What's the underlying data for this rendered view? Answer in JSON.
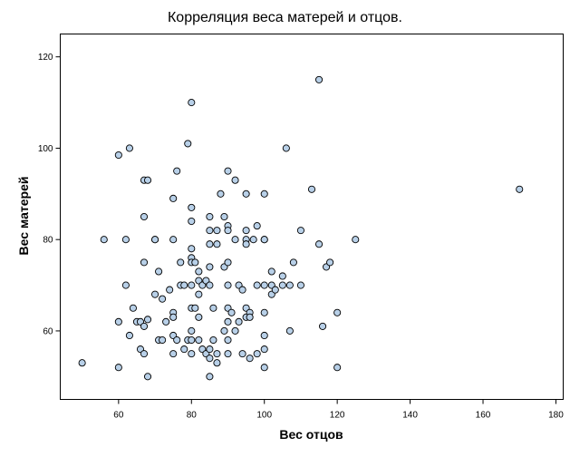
{
  "chart_data": {
    "type": "scatter",
    "title": "Корреляция веса матерей и отцов.",
    "xlabel": "Вес отцов",
    "ylabel": "Вес матерей",
    "xlim": [
      44,
      182
    ],
    "ylim": [
      45,
      125
    ],
    "xticks": [
      60,
      80,
      100,
      120,
      140,
      160,
      180
    ],
    "yticks": [
      60,
      80,
      100,
      120
    ],
    "grid": false,
    "colors": {
      "point_fill": "#b8d0e8",
      "point_stroke": "#000000",
      "axis": "#000000"
    },
    "points": [
      [
        50,
        53
      ],
      [
        56,
        80
      ],
      [
        60,
        98.5
      ],
      [
        60,
        62
      ],
      [
        60,
        52
      ],
      [
        62,
        80
      ],
      [
        62,
        70
      ],
      [
        63,
        100
      ],
      [
        63,
        59
      ],
      [
        64,
        65
      ],
      [
        65,
        62
      ],
      [
        66,
        56
      ],
      [
        66,
        62
      ],
      [
        67,
        93
      ],
      [
        67,
        85
      ],
      [
        67,
        75
      ],
      [
        67,
        61
      ],
      [
        67,
        55
      ],
      [
        68,
        93
      ],
      [
        68,
        62.5
      ],
      [
        68,
        50
      ],
      [
        70,
        80
      ],
      [
        70,
        68
      ],
      [
        70,
        80
      ],
      [
        71,
        73
      ],
      [
        71,
        58
      ],
      [
        72,
        58
      ],
      [
        72,
        67
      ],
      [
        73,
        62
      ],
      [
        74,
        69
      ],
      [
        75,
        89
      ],
      [
        75,
        80
      ],
      [
        75,
        64
      ],
      [
        75,
        63
      ],
      [
        75,
        59
      ],
      [
        75,
        55
      ],
      [
        76,
        95
      ],
      [
        76,
        58
      ],
      [
        77,
        75
      ],
      [
        77,
        70
      ],
      [
        78,
        56
      ],
      [
        78,
        70
      ],
      [
        79,
        58
      ],
      [
        79,
        101
      ],
      [
        80,
        110
      ],
      [
        80,
        87
      ],
      [
        80,
        84
      ],
      [
        80,
        78
      ],
      [
        80,
        76
      ],
      [
        80,
        75
      ],
      [
        80,
        70
      ],
      [
        80,
        65
      ],
      [
        80,
        60
      ],
      [
        80,
        58
      ],
      [
        80,
        55
      ],
      [
        81,
        75
      ],
      [
        81,
        65
      ],
      [
        82,
        71
      ],
      [
        82,
        73
      ],
      [
        82,
        68
      ],
      [
        82,
        63
      ],
      [
        82,
        58
      ],
      [
        83,
        56
      ],
      [
        83,
        70
      ],
      [
        84,
        55
      ],
      [
        84,
        71
      ],
      [
        85,
        85
      ],
      [
        85,
        82
      ],
      [
        85,
        79
      ],
      [
        85,
        74
      ],
      [
        85,
        70
      ],
      [
        85,
        56
      ],
      [
        85,
        54
      ],
      [
        85,
        50
      ],
      [
        86,
        58
      ],
      [
        86,
        65
      ],
      [
        87,
        82
      ],
      [
        87,
        79
      ],
      [
        87,
        55
      ],
      [
        87,
        53
      ],
      [
        88,
        90
      ],
      [
        89,
        85
      ],
      [
        89,
        74
      ],
      [
        89,
        60
      ],
      [
        90,
        95
      ],
      [
        90,
        83
      ],
      [
        90,
        82
      ],
      [
        90,
        75
      ],
      [
        90,
        70
      ],
      [
        90,
        65
      ],
      [
        90,
        62
      ],
      [
        90,
        58
      ],
      [
        90,
        55
      ],
      [
        91,
        64
      ],
      [
        92,
        93
      ],
      [
        92,
        80
      ],
      [
        92,
        60
      ],
      [
        93,
        70
      ],
      [
        93,
        62
      ],
      [
        94,
        69
      ],
      [
        94,
        55
      ],
      [
        95,
        90
      ],
      [
        95,
        82
      ],
      [
        95,
        80
      ],
      [
        95,
        79
      ],
      [
        95,
        65
      ],
      [
        95,
        63
      ],
      [
        96,
        64
      ],
      [
        96,
        63
      ],
      [
        96,
        54
      ],
      [
        97,
        80
      ],
      [
        98,
        83
      ],
      [
        98,
        70
      ],
      [
        98,
        55
      ],
      [
        100,
        90
      ],
      [
        100,
        80
      ],
      [
        100,
        80
      ],
      [
        100,
        70
      ],
      [
        100,
        64
      ],
      [
        100,
        59
      ],
      [
        100,
        56
      ],
      [
        100,
        52
      ],
      [
        102,
        73
      ],
      [
        102,
        70
      ],
      [
        102,
        68
      ],
      [
        103,
        69
      ],
      [
        105,
        72
      ],
      [
        105,
        70
      ],
      [
        106,
        100
      ],
      [
        107,
        70
      ],
      [
        107,
        60
      ],
      [
        108,
        75
      ],
      [
        110,
        82
      ],
      [
        110,
        70
      ],
      [
        113,
        91
      ],
      [
        115,
        115
      ],
      [
        115,
        79
      ],
      [
        116,
        61
      ],
      [
        117,
        74
      ],
      [
        118,
        75
      ],
      [
        120,
        64
      ],
      [
        120,
        52
      ],
      [
        125,
        80
      ],
      [
        170,
        91
      ]
    ]
  }
}
